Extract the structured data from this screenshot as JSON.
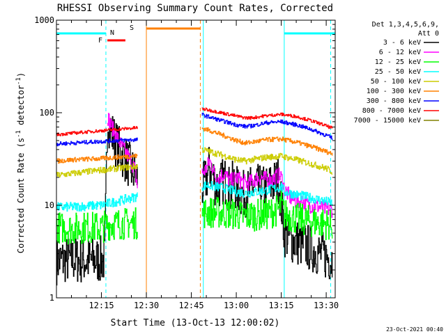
{
  "chart_data": {
    "type": "line",
    "title": "RHESSI Observing Summary Count Rates, Corrected",
    "xlabel": "Start Time (13-Oct-13 12:00:02)",
    "ylabel_main": "Corrected Count Rate (s",
    "ylabel_sup1": "-1",
    "ylabel_mid": " detector",
    "ylabel_sup2": "-1",
    "ylabel_end": ")",
    "x_unit": "minutes after 12:00:02",
    "xlim": [
      0,
      93
    ],
    "ylim": [
      1,
      1000
    ],
    "yscale": "log",
    "x_ticks": [
      {
        "x": 15,
        "label": "12:15"
      },
      {
        "x": 30,
        "label": "12:30"
      },
      {
        "x": 45,
        "label": "12:45"
      },
      {
        "x": 60,
        "label": "13:00"
      },
      {
        "x": 75,
        "label": "13:15"
      },
      {
        "x": 90,
        "label": "13:30"
      }
    ],
    "y_ticks": [
      {
        "y": 1,
        "label": "1"
      },
      {
        "y": 10,
        "label": "10"
      },
      {
        "y": 100,
        "label": "100"
      },
      {
        "y": 1000,
        "label": "1000"
      }
    ],
    "legend": {
      "placement": "top-right",
      "header": [
        "Det 1,3,4,5,6,9,",
        "Att 0"
      ]
    },
    "series": [
      {
        "name": "3 - 6 keV",
        "color": "#000000",
        "noise": 0.6,
        "segments": [
          {
            "x": [
              0,
              5,
              10,
              16,
              17,
              18,
              20,
              22,
              24,
              25,
              26,
              27
            ],
            "y": [
              2.5,
              2.6,
              2.5,
              2.6,
              88,
              65,
              45,
              35,
              28,
              24,
              22,
              20
            ]
          },
          {
            "x": [
              48.5,
              50,
              51,
              52,
              53,
              54,
              56,
              58,
              59,
              60,
              62,
              64,
              66,
              68,
              70,
              72,
              74,
              75,
              76,
              78,
              80,
              82,
              84,
              86,
              88,
              90,
              92
            ],
            "y": [
              15,
              19,
              26,
              22,
              17,
              16,
              19,
              14,
              18,
              15,
              13,
              14,
              16,
              15,
              15,
              17,
              19,
              10,
              5,
              4.3,
              4,
              3.8,
              3.5,
              3.3,
              3,
              2.8,
              2.6
            ]
          }
        ]
      },
      {
        "name": "6 - 12 keV",
        "color": "#ff00ff",
        "noise": 0.2,
        "segments": [
          {
            "x": [
              17,
              18,
              20,
              22,
              24,
              26,
              27
            ],
            "y": [
              92,
              75,
              55,
              42,
              33,
              25,
              16
            ]
          },
          {
            "x": [
              48.5,
              50,
              51,
              52,
              53,
              54,
              56,
              58,
              60,
              62,
              64,
              66,
              68,
              70,
              72,
              74,
              75,
              76,
              78,
              80,
              82,
              84,
              86,
              88,
              90,
              92
            ],
            "y": [
              22,
              25,
              30,
              26,
              20,
              20,
              22,
              18,
              20,
              18,
              17,
              19,
              20,
              19,
              19,
              21,
              20,
              15,
              12,
              11,
              11,
              10,
              10,
              9.5,
              9,
              9
            ]
          }
        ]
      },
      {
        "name": "12 - 25 keV",
        "color": "#00ff00",
        "noise": 0.4,
        "segments": [
          {
            "x": [
              0,
              5,
              10,
              15,
              16,
              17,
              20,
              25,
              27
            ],
            "y": [
              5.8,
              5.6,
              5.8,
              5.7,
              6,
              6.2,
              6.3,
              6.4,
              6.4
            ]
          },
          {
            "x": [
              48.5,
              50,
              55,
              60,
              62,
              65,
              70,
              74,
              75,
              76,
              80,
              85,
              90,
              92
            ],
            "y": [
              8,
              8.5,
              8.3,
              8,
              7.5,
              7.8,
              8,
              9,
              10,
              8,
              7.2,
              6.7,
              6.3,
              6
            ]
          }
        ]
      },
      {
        "name": "25 - 50 keV",
        "color": "#00ffff",
        "noise": 0.12,
        "segments": [
          {
            "x": [
              0,
              5,
              10,
              15,
              16,
              20,
              25,
              27
            ],
            "y": [
              9.5,
              9.6,
              9.8,
              10,
              10.2,
              11,
              12,
              12.5
            ]
          },
          {
            "x": [
              48.5,
              50,
              55,
              60,
              63,
              65,
              70,
              74,
              75,
              76,
              80,
              85,
              90,
              92
            ],
            "y": [
              16,
              16.5,
              15.5,
              14,
              13.5,
              13.8,
              14.5,
              15.5,
              16,
              14,
              13,
              12,
              11,
              10.5
            ]
          }
        ]
      },
      {
        "name": "50 - 100 keV",
        "color": "#cccc00",
        "noise": 0.08,
        "segments": [
          {
            "x": [
              0,
              5,
              10,
              15,
              20,
              25,
              27
            ],
            "y": [
              21,
              22,
              23,
              24,
              25,
              26,
              26.5
            ]
          },
          {
            "x": [
              48.5,
              50,
              55,
              60,
              63,
              65,
              70,
              75,
              80,
              85,
              90,
              92
            ],
            "y": [
              40,
              39,
              35,
              31,
              30,
              31,
              33,
              34,
              31,
              28,
              25,
              23
            ]
          }
        ]
      },
      {
        "name": "100 - 300 keV",
        "color": "#ff8000",
        "noise": 0.06,
        "segments": [
          {
            "x": [
              0,
              5,
              10,
              15,
              20,
              25,
              27
            ],
            "y": [
              30,
              31,
              31.5,
              32,
              33,
              34,
              34
            ]
          },
          {
            "x": [
              48.5,
              50,
              55,
              60,
              63,
              65,
              70,
              75,
              80,
              85,
              90,
              92
            ],
            "y": [
              68,
              66,
              58,
              50,
              47,
              48,
              51,
              52,
              48,
              43,
              38,
              36
            ]
          }
        ]
      },
      {
        "name": "300 - 800 keV",
        "color": "#0000ff",
        "noise": 0.05,
        "segments": [
          {
            "x": [
              0,
              5,
              10,
              15,
              20,
              25,
              27
            ],
            "y": [
              46,
              47,
              48,
              49,
              50,
              51,
              51
            ]
          },
          {
            "x": [
              48.5,
              50,
              55,
              60,
              63,
              65,
              70,
              75,
              80,
              85,
              90,
              92
            ],
            "y": [
              95,
              92,
              82,
              74,
              71,
              72,
              78,
              80,
              74,
              66,
              57,
              53
            ]
          }
        ]
      },
      {
        "name": "800 - 7000 keV",
        "color": "#ff0000",
        "noise": 0.04,
        "segments": [
          {
            "x": [
              0,
              5,
              10,
              15,
              20,
              25,
              27
            ],
            "y": [
              58,
              60,
              62,
              64,
              66,
              68,
              69
            ]
          },
          {
            "x": [
              48.5,
              50,
              55,
              60,
              63,
              65,
              70,
              75,
              80,
              85,
              90,
              92
            ],
            "y": [
              110,
              108,
              100,
              92,
              88,
              88,
              93,
              96,
              91,
              82,
              72,
              68
            ]
          }
        ]
      },
      {
        "name": "7000 - 15000 keV",
        "color": "#808000",
        "noise": 0,
        "segments": []
      }
    ],
    "annotations": {
      "night": {
        "color": "#00ffff",
        "bars": [
          {
            "x1": 0,
            "x2": 16.5
          },
          {
            "x1": 76,
            "x2": 93
          }
        ],
        "lines": [
          {
            "x": 49,
            "dashed": false
          },
          {
            "x": 16.5,
            "dashed": true
          },
          {
            "x": 76,
            "dashed": false
          },
          {
            "x": 91.5,
            "dashed": true
          }
        ]
      },
      "saa": {
        "label": "S",
        "color": "#ff8000",
        "bars": [
          {
            "x1": 30,
            "x2": 48
          }
        ],
        "lines": [
          {
            "x": 30,
            "dashed": false
          },
          {
            "x": 48,
            "dashed": true
          }
        ]
      },
      "flare": {
        "label": "F",
        "color": "#ff0000",
        "bars": [
          {
            "x1": 17,
            "x2": 23
          }
        ]
      },
      "night_label": "N"
    },
    "footer_date": "23-Oct-2021 00:40"
  }
}
